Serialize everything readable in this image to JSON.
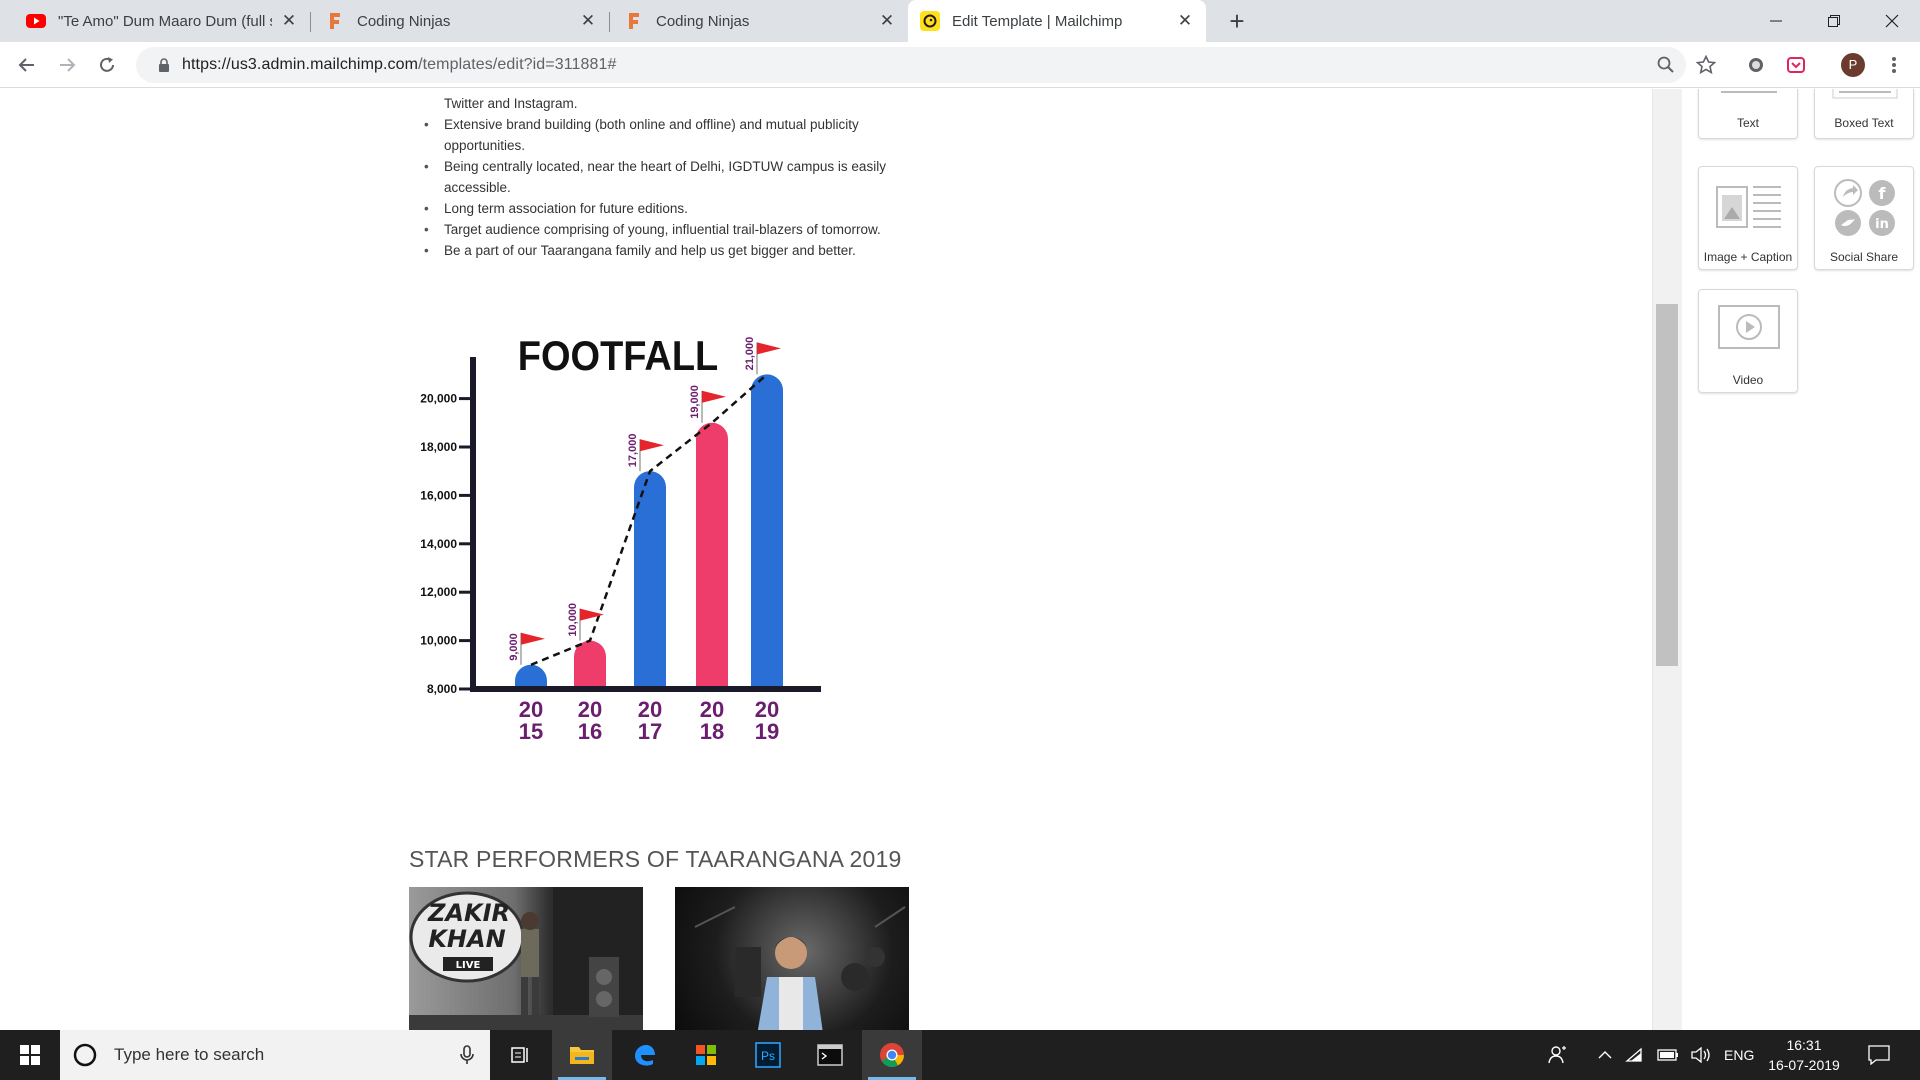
{
  "browser": {
    "tabs": [
      {
        "title": "\"Te Amo\" Dum Maaro Dum (full s",
        "icon": "youtube-icon",
        "active": false
      },
      {
        "title": "Coding Ninjas",
        "icon": "coding-ninjas-icon",
        "active": false
      },
      {
        "title": "Coding Ninjas",
        "icon": "coding-ninjas-icon",
        "active": false
      },
      {
        "title": "Edit Template | Mailchimp",
        "icon": "mailchimp-icon",
        "active": true
      }
    ],
    "url_host": "https://us3.admin.mailchimp.com",
    "url_path": "/templates/edit?id=311881#",
    "profile_initial": "P"
  },
  "page": {
    "fragment_line": "Twitter and Instagram.",
    "bullets": [
      "Extensive brand building (both online and offline) and mutual publicity opportunities.",
      "Being centrally located, near the heart of Delhi, IGDTUW campus is easily accessible.",
      "Long term association for future editions.",
      "Target audience comprising of young, influential trail-blazers of tomorrow.",
      "Be a part of our Taarangana family and help us get bigger and better."
    ],
    "star_title": "STAR PERFORMERS OF TAARANGANA 2019",
    "photo1_text": [
      "ZAKIR",
      "KHAN",
      "LIVE"
    ]
  },
  "chart_data": {
    "type": "bar",
    "title": "FOOTFALL",
    "categories": [
      "2015",
      "2016",
      "2017",
      "2018",
      "2019"
    ],
    "category_labels": [
      [
        "20",
        "15"
      ],
      [
        "20",
        "16"
      ],
      [
        "20",
        "17"
      ],
      [
        "20",
        "18"
      ],
      [
        "20",
        "19"
      ]
    ],
    "values": [
      9000,
      10000,
      17000,
      19000,
      21000
    ],
    "value_labels": [
      "9,000",
      "10,000",
      "17,000",
      "19,000",
      "21,000"
    ],
    "bar_colors": [
      "#2a6fd6",
      "#ef3d6b",
      "#2a6fd6",
      "#ef3d6b",
      "#2a6fd6"
    ],
    "yticks": [
      8000,
      10000,
      12000,
      14000,
      16000,
      18000,
      20000
    ],
    "ytick_labels": [
      "8,000",
      "10,000",
      "12,000",
      "14,000",
      "16,000",
      "18,000",
      "20,000"
    ],
    "ylim": [
      8000,
      21000
    ],
    "trend_line": "dashed",
    "flag_color": "#e5242b",
    "label_color": "#6b1d6e"
  },
  "panel": {
    "blocks": [
      {
        "label": "Text",
        "icon": "text-block-icon"
      },
      {
        "label": "Boxed Text",
        "icon": "boxed-text-block-icon"
      },
      {
        "label": "Image + Caption",
        "icon": "image-caption-block-icon"
      },
      {
        "label": "Social Share",
        "icon": "social-share-block-icon"
      },
      {
        "label": "Video",
        "icon": "video-block-icon"
      }
    ]
  },
  "taskbar": {
    "search_placeholder": "Type here to search",
    "lang": "ENG",
    "time": "16:31",
    "date": "16-07-2019"
  }
}
